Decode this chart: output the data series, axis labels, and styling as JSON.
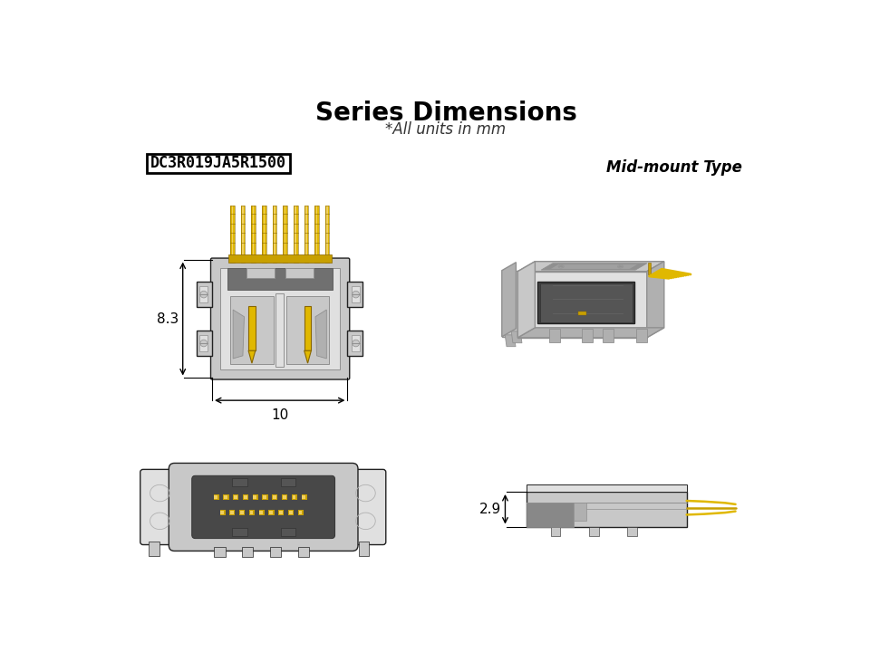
{
  "title": "Series Dimensions",
  "subtitle": "*All units in mm",
  "part_number": "DC3R019JA5R1500",
  "mount_type": "Mid-mount Type",
  "dim_width": "10",
  "dim_height": "8.3",
  "dim_side": "2.9",
  "bg_color": "#ffffff",
  "title_fontsize": 20,
  "subtitle_fontsize": 12,
  "part_fontsize": 12,
  "mount_fontsize": 12,
  "dim_fontsize": 11,
  "c1": "#e0e0e0",
  "c2": "#c8c8c8",
  "c3": "#b0b0b0",
  "c4": "#909090",
  "c5": "#707070",
  "c6": "#505050",
  "cdark": "#3a3a3a",
  "cblack": "#222222",
  "cbody": "#d6d6d6",
  "cshell": "#c0c0c0",
  "cgrey_dark": "#606060",
  "cgrey_med": "#909090",
  "pin_gold": "#c8a000",
  "pin_gold2": "#e0b800",
  "pin_gold3": "#f0d060",
  "outline": "#444444"
}
